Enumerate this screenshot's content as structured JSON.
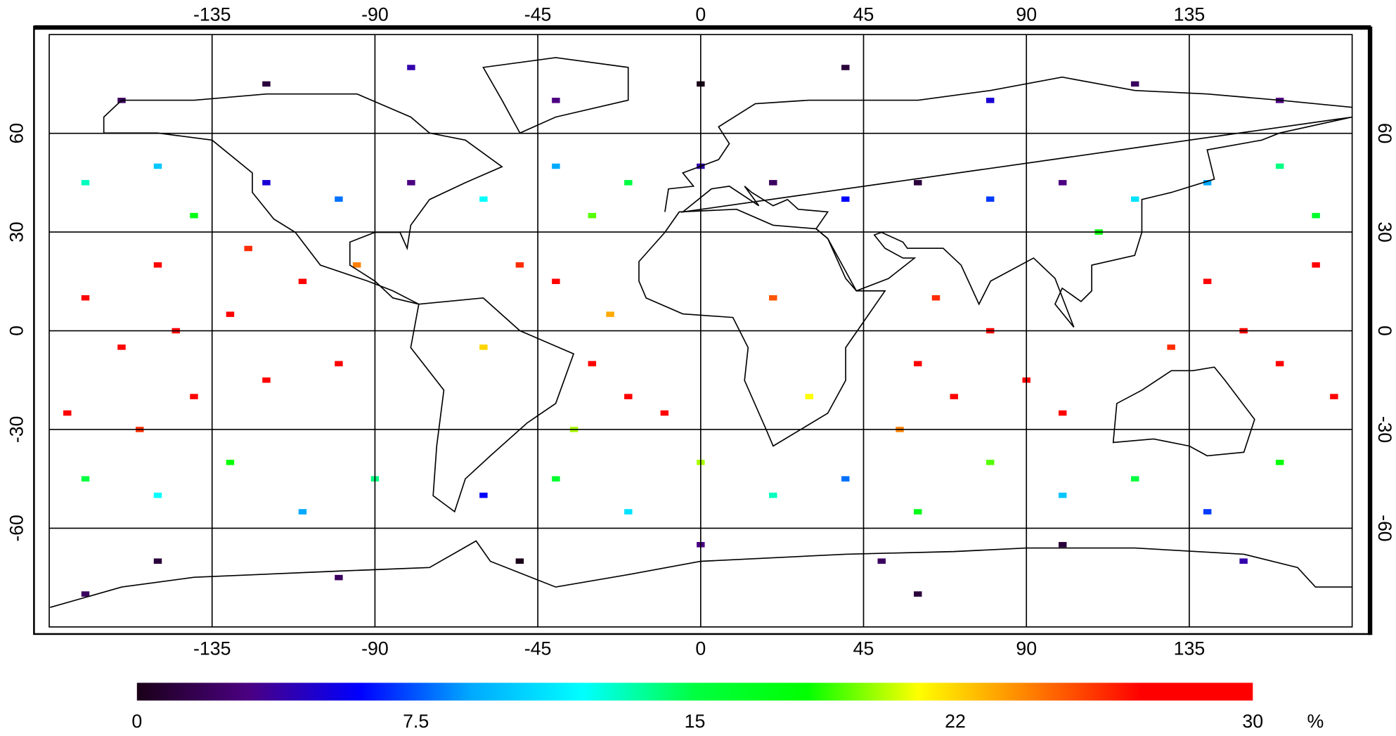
{
  "chart_data": {
    "type": "scatter",
    "xlim": [
      -180,
      180
    ],
    "ylim": [
      -90,
      90
    ],
    "xticks": [
      -135,
      -90,
      -45,
      0,
      45,
      90,
      135
    ],
    "yticks": [
      -60,
      -30,
      0,
      30,
      60
    ],
    "grid": true,
    "colormap": [
      "#1a0018",
      "#4b0082",
      "#0000ff",
      "#00aaff",
      "#00ffff",
      "#00ff40",
      "#00ff00",
      "#ffff00",
      "#ff8000",
      "#ff0000",
      "#ff0000"
    ],
    "colorbar": {
      "lim": [
        0,
        30
      ],
      "ticks": [
        0,
        7.5,
        15,
        22,
        30
      ],
      "label": "%"
    },
    "x": [
      -170,
      -160,
      -150,
      -140,
      -130,
      -120,
      -110,
      -175,
      -155,
      -100,
      -125,
      -145,
      -40,
      -30,
      -20,
      -50,
      -25,
      -10,
      -35,
      60,
      70,
      80,
      90,
      100,
      65,
      55,
      140,
      150,
      160,
      170,
      130,
      175,
      -170,
      -150,
      -130,
      -110,
      -90,
      -60,
      -40,
      -20,
      0,
      20,
      40,
      60,
      80,
      100,
      120,
      140,
      160,
      -170,
      -150,
      -140,
      -120,
      -100,
      -80,
      -60,
      -40,
      -20,
      0,
      20,
      40,
      60,
      80,
      100,
      120,
      140,
      160,
      -30,
      170,
      -160,
      -120,
      -80,
      -40,
      0,
      40,
      80,
      120,
      160,
      -150,
      -100,
      -50,
      0,
      50,
      100,
      150,
      -170,
      60,
      20,
      -60,
      110,
      -95,
      30
    ],
    "y": [
      10,
      -5,
      20,
      -20,
      5,
      -15,
      15,
      -25,
      -30,
      -10,
      25,
      0,
      15,
      -10,
      -20,
      20,
      5,
      -25,
      -30,
      -10,
      -20,
      0,
      -15,
      -25,
      10,
      -30,
      15,
      0,
      -10,
      20,
      -5,
      -20,
      -45,
      -50,
      -40,
      -55,
      -45,
      -50,
      -45,
      -55,
      -40,
      -50,
      -45,
      -55,
      -40,
      -50,
      -45,
      -55,
      -40,
      45,
      50,
      35,
      45,
      40,
      45,
      40,
      50,
      45,
      50,
      45,
      40,
      45,
      40,
      45,
      40,
      45,
      50,
      35,
      35,
      70,
      75,
      80,
      70,
      75,
      80,
      70,
      75,
      70,
      -70,
      -75,
      -70,
      -65,
      -70,
      -65,
      -70,
      -80,
      -80,
      10,
      -5,
      30,
      20,
      -20
    ],
    "values": [
      29,
      28,
      30,
      29,
      27,
      30,
      28,
      29,
      26,
      28,
      26,
      30,
      28,
      29,
      27,
      26,
      23,
      28,
      20,
      29,
      30,
      28,
      27,
      29,
      26,
      24,
      30,
      29,
      28,
      27,
      26,
      29,
      15,
      12,
      18,
      9,
      14,
      6,
      16,
      11,
      20,
      13,
      8,
      17,
      19,
      10,
      15,
      7,
      18,
      13,
      10,
      17,
      5,
      8,
      3,
      12,
      9,
      15,
      4,
      2,
      6,
      1,
      7,
      3,
      11,
      9,
      14,
      19,
      16,
      2,
      1,
      4,
      3,
      0,
      1,
      5,
      2,
      3,
      1,
      2,
      0,
      3,
      2,
      1,
      4,
      2,
      1,
      25,
      22,
      18,
      24,
      21
    ]
  }
}
